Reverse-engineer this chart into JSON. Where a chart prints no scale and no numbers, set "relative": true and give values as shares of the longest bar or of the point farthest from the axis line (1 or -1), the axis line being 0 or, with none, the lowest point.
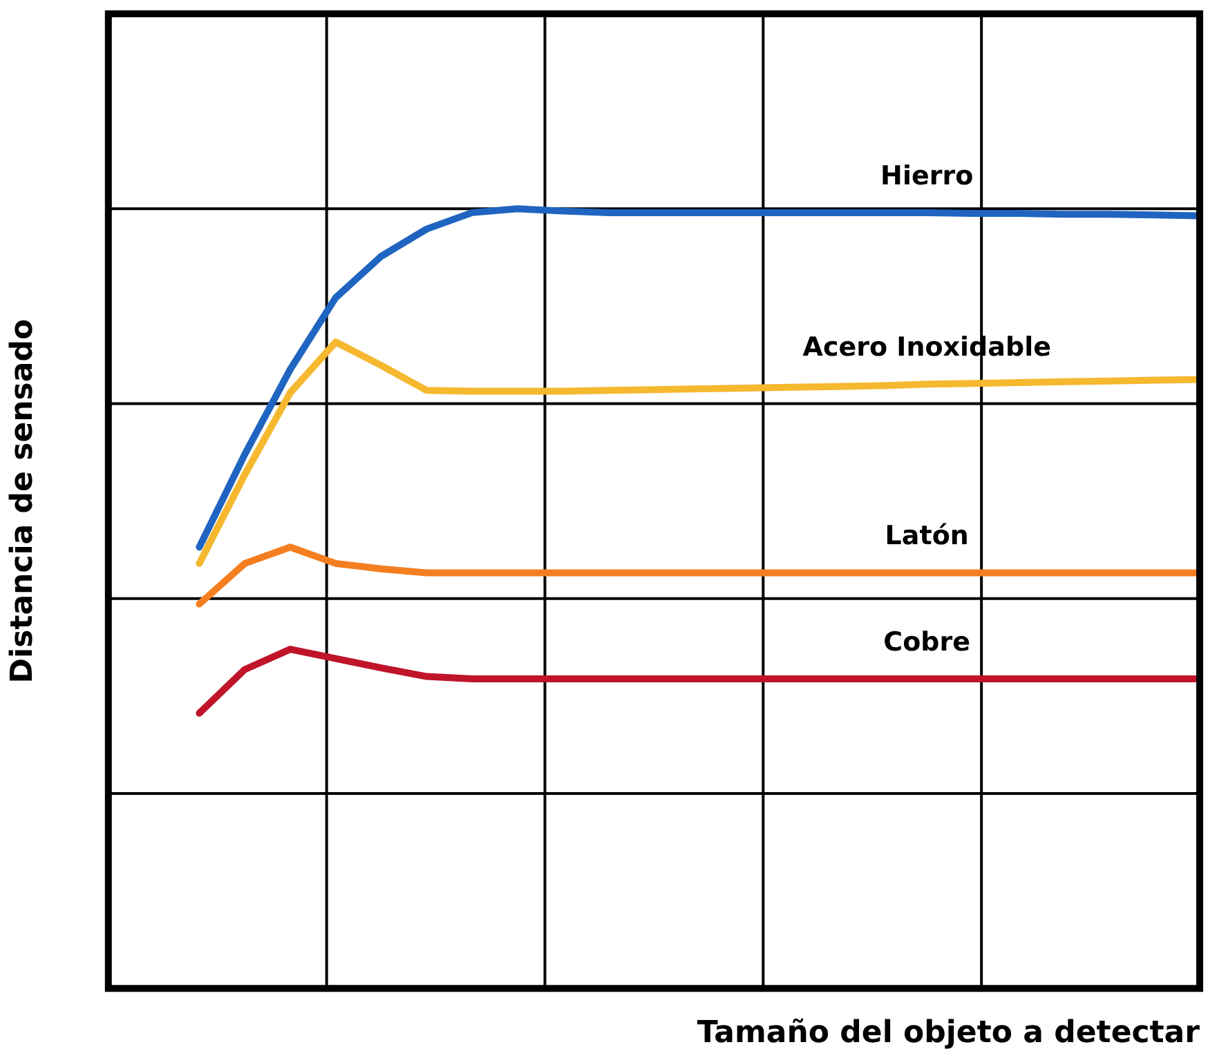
{
  "chart_data": {
    "type": "line",
    "relative": true,
    "xlabel": "Tamaño del objeto a detectar",
    "ylabel": "Distancia de sensado",
    "grid": true,
    "legend": false,
    "tick_labels": false,
    "marker": "none",
    "line_style": "solid",
    "categories": [
      null,
      null,
      null,
      null,
      null,
      null,
      null,
      null,
      null,
      null,
      null,
      null,
      null,
      null,
      null,
      null,
      null,
      null,
      null,
      null,
      null,
      null,
      null,
      null,
      null
    ],
    "series": [
      {
        "name": "Hierro",
        "color": "#1f64c0",
        "values": [
          null,
          null,
          0.566,
          0.685,
          0.794,
          0.886,
          0.939,
          0.974,
          0.995,
          1.0,
          0.997,
          0.995,
          0.995,
          0.995,
          0.995,
          0.995,
          0.995,
          0.995,
          0.995,
          0.994,
          0.994,
          0.993,
          0.993,
          0.992,
          0.991
        ]
      },
      {
        "name": "Acero Inoxidable",
        "color": "#f5b82e",
        "values": [
          null,
          null,
          0.545,
          0.659,
          0.764,
          0.829,
          0.799,
          0.767,
          0.766,
          0.766,
          0.766,
          0.767,
          0.768,
          0.769,
          0.77,
          0.771,
          0.772,
          0.773,
          0.775,
          0.776,
          0.777,
          0.778,
          0.779,
          0.78,
          0.781
        ]
      },
      {
        "name": "Latón",
        "color": "#f57f20",
        "values": [
          null,
          null,
          0.493,
          0.545,
          0.566,
          0.545,
          0.538,
          0.533,
          0.533,
          0.533,
          0.533,
          0.533,
          0.533,
          0.533,
          0.533,
          0.533,
          0.533,
          0.533,
          0.533,
          0.533,
          0.533,
          0.533,
          0.533,
          0.533,
          0.533
        ]
      },
      {
        "name": "Cobre",
        "color": "#c0142a",
        "values": [
          null,
          null,
          0.353,
          0.409,
          0.435,
          0.423,
          0.411,
          0.4,
          0.397,
          0.397,
          0.397,
          0.397,
          0.397,
          0.397,
          0.397,
          0.397,
          0.397,
          0.397,
          0.397,
          0.397,
          0.397,
          0.397,
          0.397,
          0.397,
          0.397
        ]
      }
    ]
  }
}
